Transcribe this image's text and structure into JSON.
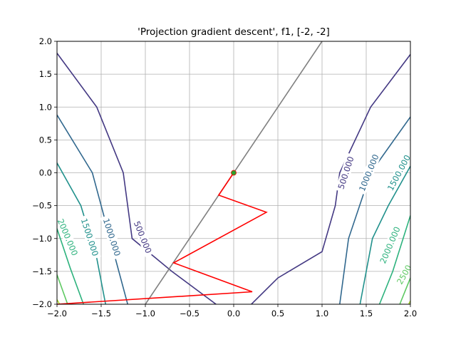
{
  "chart_data": {
    "type": "line",
    "title": "'Projection gradient descent', f1, [-2, -2]",
    "xlabel": "",
    "ylabel": "",
    "xlim": [
      -2.0,
      2.0
    ],
    "ylim": [
      -2.0,
      2.0
    ],
    "grid": true,
    "x_ticks": [
      "−2.0",
      "−1.5",
      "−1.0",
      "−0.5",
      "0.0",
      "0.5",
      "1.0",
      "1.5",
      "2.0"
    ],
    "y_ticks": [
      "−2.0",
      "−1.5",
      "−1.0",
      "−0.5",
      "0.0",
      "0.5",
      "1.0",
      "1.5",
      "2.0"
    ],
    "contours": [
      {
        "level": 500,
        "label": "500.000",
        "color": "#443983",
        "segments": [
          {
            "x": [
              -2.0,
              -1.55,
              -1.25,
              -1.2,
              -1.15,
              -0.7,
              -0.2
            ],
            "y": [
              1.82,
              1.0,
              0.0,
              -0.5,
              -1.0,
              -1.5,
              -2.0
            ]
          },
          {
            "x": [
              0.2,
              0.5,
              1.0,
              1.15,
              1.2,
              1.55,
              2.0
            ],
            "y": [
              -2.0,
              -1.6,
              -1.2,
              -0.5,
              0.0,
              1.0,
              1.8
            ]
          }
        ],
        "labels": [
          {
            "text": "500.000",
            "x": -1.03,
            "y": -0.98,
            "angle": 68
          },
          {
            "text": "500.000",
            "x": 1.27,
            "y": 0.0,
            "angle": -72
          }
        ]
      },
      {
        "level": 1000,
        "label": "1000.000",
        "color": "#31688e",
        "segments": [
          {
            "x": [
              -2.0,
              -1.6,
              -1.4,
              -1.2
            ],
            "y": [
              0.88,
              0.0,
              -1.0,
              -2.0
            ]
          },
          {
            "x": [
              1.2,
              1.3,
              1.55,
              2.0
            ],
            "y": [
              -2.0,
              -1.0,
              0.0,
              0.85
            ]
          }
        ],
        "labels": [
          {
            "text": "1000.000",
            "x": -1.38,
            "y": -0.98,
            "angle": 72
          },
          {
            "text": "1000.000",
            "x": 1.53,
            "y": 0.0,
            "angle": -68
          }
        ]
      },
      {
        "level": 1500,
        "label": "1500.000",
        "color": "#21918c",
        "segments": [
          {
            "x": [
              -2.0,
              -1.73,
              -1.55,
              -1.45
            ],
            "y": [
              0.15,
              -0.5,
              -1.3,
              -2.0
            ]
          },
          {
            "x": [
              1.43,
              1.57,
              1.75,
              2.0
            ],
            "y": [
              -2.0,
              -1.0,
              -0.5,
              0.1
            ]
          }
        ],
        "labels": [
          {
            "text": "1500.000",
            "x": -1.63,
            "y": -0.98,
            "angle": 72
          },
          {
            "text": "1500.000",
            "x": 1.87,
            "y": 0.0,
            "angle": -62
          }
        ]
      },
      {
        "level": 2000,
        "label": "2000.000",
        "color": "#2db27d",
        "segments": [
          {
            "x": [
              -2.0,
              -1.85,
              -1.7
            ],
            "y": [
              -0.85,
              -1.45,
              -2.0
            ]
          },
          {
            "x": [
              1.65,
              1.8,
              2.0
            ],
            "y": [
              -2.0,
              -1.5,
              -0.65
            ]
          }
        ],
        "labels": [
          {
            "text": "2000.000",
            "x": -1.88,
            "y": -0.98,
            "angle": 67
          },
          {
            "text": "2000.000",
            "x": 1.77,
            "y": -1.1,
            "angle": -67
          }
        ]
      },
      {
        "level": 2500,
        "label": "2500",
        "color": "#5ec962",
        "segments": [
          {
            "x": [
              -2.0,
              -1.88
            ],
            "y": [
              -1.55,
              -2.0
            ]
          },
          {
            "x": [
              1.88,
              2.0
            ],
            "y": [
              -2.0,
              -1.6
            ]
          }
        ],
        "labels": [
          {
            "text": "2500",
            "x": 1.93,
            "y": -1.55,
            "angle": -60
          }
        ]
      },
      {
        "level": 3000,
        "label": "",
        "color": "#addc30",
        "segments": [
          {
            "x": [
              -2.0,
              -1.97
            ],
            "y": [
              -1.93,
              -2.0
            ]
          },
          {
            "x": [
              1.98,
              2.0
            ],
            "y": [
              -2.0,
              -1.95
            ]
          }
        ],
        "labels": []
      }
    ],
    "constraint_line": {
      "color": "#808080",
      "x": [
        -1.0,
        1.0
      ],
      "y": [
        -2.0,
        2.0
      ]
    },
    "path": {
      "color": "#ff0000",
      "x": [
        -2.0,
        0.21,
        -0.68,
        0.37,
        -0.17,
        0.0
      ],
      "y": [
        -2.0,
        -1.81,
        -1.37,
        -0.6,
        -0.34,
        0.0
      ]
    },
    "end_point": {
      "x": 0.0,
      "y": 0.0,
      "color": "#2ca02c"
    }
  }
}
